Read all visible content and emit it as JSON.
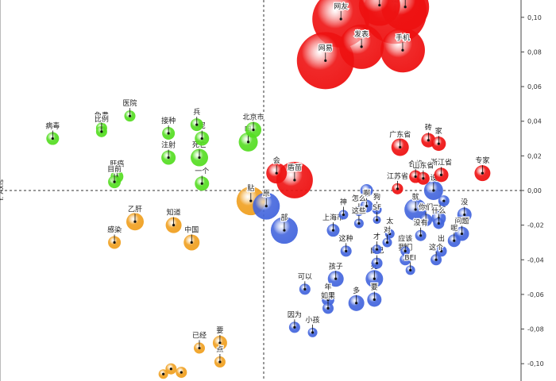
{
  "chart_data": {
    "type": "scatter",
    "ylabel": "Y. Axis",
    "xlim": [
      -1.0,
      1.0
    ],
    "ylim": [
      -0.11,
      0.11
    ],
    "y_ticks": [
      0.1,
      0.08,
      0.06,
      0.04,
      0.02,
      0.0,
      -0.02,
      -0.04,
      -0.06,
      -0.08,
      -0.1
    ],
    "y_tick_labels": [
      "0,10",
      "0,08",
      "0,06",
      "0,04",
      "0,02",
      "0,00",
      "-0,02",
      "-0,04",
      "-0,06",
      "-0,08",
      "-0,10"
    ],
    "grid": false,
    "colors": {
      "red": "#ee1111",
      "green": "#55dd22",
      "orange": "#f0a020",
      "blue": "#4466dd"
    },
    "series": [
      {
        "color": "red",
        "points": [
          {
            "label": "网友",
            "x": 0.3,
            "y": 0.099,
            "size": 36
          },
          {
            "label": "图表",
            "x": 0.45,
            "y": 0.107,
            "size": 26
          },
          {
            "label": "联盟",
            "x": 0.55,
            "y": 0.106,
            "size": 30
          },
          {
            "label": "图",
            "x": 0.51,
            "y": 0.103,
            "size": 40
          },
          {
            "label": "发表",
            "x": 0.38,
            "y": 0.083,
            "size": 28
          },
          {
            "label": "手机",
            "x": 0.54,
            "y": 0.081,
            "size": 28
          },
          {
            "label": "网易",
            "x": 0.24,
            "y": 0.075,
            "size": 36
          },
          {
            "label": "广东省",
            "x": 0.53,
            "y": 0.025,
            "size": 11
          },
          {
            "label": "砖",
            "x": 0.64,
            "y": 0.029,
            "size": 9
          },
          {
            "label": "家",
            "x": 0.68,
            "y": 0.027,
            "size": 9
          },
          {
            "label": "合格",
            "x": 0.59,
            "y": 0.008,
            "size": 8
          },
          {
            "label": "山东省",
            "x": 0.62,
            "y": 0.007,
            "size": 8
          },
          {
            "label": "浙江省",
            "x": 0.69,
            "y": 0.009,
            "size": 9
          },
          {
            "label": "专家",
            "x": 0.85,
            "y": 0.01,
            "size": 10
          },
          {
            "label": "江苏省",
            "x": 0.52,
            "y": 0.001,
            "size": 7
          },
          {
            "label": "会",
            "x": 0.05,
            "y": 0.01,
            "size": 13
          },
          {
            "label": "盾苗",
            "x": 0.12,
            "y": 0.006,
            "size": 23
          }
        ]
      },
      {
        "color": "green",
        "points": [
          {
            "label": "病毒",
            "x": -0.82,
            "y": 0.03,
            "size": 8
          },
          {
            "label": "免费",
            "x": -0.63,
            "y": 0.036,
            "size": 7
          },
          {
            "label": "比例",
            "x": -0.63,
            "y": 0.034,
            "size": 7
          },
          {
            "label": "医院",
            "x": -0.52,
            "y": 0.043,
            "size": 7
          },
          {
            "label": "接种",
            "x": -0.37,
            "y": 0.033,
            "size": 8
          },
          {
            "label": "兵",
            "x": -0.26,
            "y": 0.038,
            "size": 8
          },
          {
            "label": "呢",
            "x": -0.24,
            "y": 0.03,
            "size": 9
          },
          {
            "label": "注射",
            "x": -0.37,
            "y": 0.019,
            "size": 9
          },
          {
            "label": "死亡",
            "x": -0.25,
            "y": 0.019,
            "size": 11
          },
          {
            "label": "北京市",
            "x": -0.04,
            "y": 0.035,
            "size": 10
          },
          {
            "label": "吗",
            "x": -0.06,
            "y": 0.028,
            "size": 12
          },
          {
            "label": "肝癌",
            "x": -0.57,
            "y": 0.008,
            "size": 8
          },
          {
            "label": "目前",
            "x": -0.58,
            "y": 0.005,
            "size": 8
          },
          {
            "label": "一个",
            "x": -0.24,
            "y": 0.004,
            "size": 9
          }
        ]
      },
      {
        "color": "orange",
        "points": [
          {
            "label": "乙肝",
            "x": -0.5,
            "y": -0.018,
            "size": 11
          },
          {
            "label": "知道",
            "x": -0.35,
            "y": -0.02,
            "size": 10
          },
          {
            "label": "感染",
            "x": -0.58,
            "y": -0.03,
            "size": 8
          },
          {
            "label": "中国",
            "x": -0.28,
            "y": -0.03,
            "size": 10
          },
          {
            "label": "贴",
            "x": -0.05,
            "y": -0.006,
            "size": 18
          },
          {
            "label": "已经",
            "x": -0.25,
            "y": -0.091,
            "size": 7
          },
          {
            "label": "要",
            "x": -0.17,
            "y": -0.088,
            "size": 9
          },
          {
            "label": "点",
            "x": -0.17,
            "y": -0.099,
            "size": 7
          },
          {
            "label": "",
            "x": -0.36,
            "y": -0.103,
            "size": 7
          },
          {
            "label": "",
            "x": -0.32,
            "y": -0.105,
            "size": 7
          },
          {
            "label": "",
            "x": -0.39,
            "y": -0.106,
            "size": 6
          }
        ]
      },
      {
        "color": "blue",
        "points": [
          {
            "label": "原",
            "x": 0.01,
            "y": -0.009,
            "size": 17
          },
          {
            "label": "部",
            "x": 0.08,
            "y": -0.023,
            "size": 17
          },
          {
            "label": "",
            "x": 0.4,
            "y": 0.0,
            "size": 8
          },
          {
            "label": "啊",
            "x": 0.4,
            "y": -0.009,
            "size": 8
          },
          {
            "label": "设",
            "x": 0.66,
            "y": 0.0,
            "size": 12
          },
          {
            "label": "",
            "x": 0.7,
            "y": -0.006,
            "size": 7
          },
          {
            "label": "就",
            "x": 0.59,
            "y": -0.011,
            "size": 14
          },
          {
            "label": "一样",
            "x": 0.68,
            "y": -0.016,
            "size": 9
          },
          {
            "label": "没",
            "x": 0.78,
            "y": -0.014,
            "size": 9
          },
          {
            "label": "怎么",
            "x": 0.37,
            "y": -0.012,
            "size": 6
          },
          {
            "label": "神",
            "x": 0.31,
            "y": -0.014,
            "size": 6
          },
          {
            "label": "狗",
            "x": 0.44,
            "y": -0.011,
            "size": 6
          },
          {
            "label": "SF",
            "x": 0.44,
            "y": -0.017,
            "size": 5
          },
          {
            "label": "这些",
            "x": 0.37,
            "y": -0.019,
            "size": 6
          },
          {
            "label": "你们",
            "x": 0.63,
            "y": -0.017,
            "size": 8
          },
          {
            "label": "什么",
            "x": 0.68,
            "y": -0.019,
            "size": 7
          },
          {
            "label": "上海市",
            "x": 0.27,
            "y": -0.023,
            "size": 8
          },
          {
            "label": "太",
            "x": 0.49,
            "y": -0.025,
            "size": 6
          },
          {
            "label": "没有",
            "x": 0.61,
            "y": -0.026,
            "size": 7
          },
          {
            "label": "问题",
            "x": 0.77,
            "y": -0.025,
            "size": 9
          },
          {
            "label": "呢",
            "x": 0.74,
            "y": -0.029,
            "size": 8
          },
          {
            "label": "对",
            "x": 0.48,
            "y": -0.03,
            "size": 6
          },
          {
            "label": "这种",
            "x": 0.32,
            "y": -0.035,
            "size": 7
          },
          {
            "label": "才",
            "x": 0.44,
            "y": -0.034,
            "size": 6
          },
          {
            "label": "应该",
            "x": 0.55,
            "y": -0.035,
            "size": 6
          },
          {
            "label": "出",
            "x": 0.69,
            "y": -0.035,
            "size": 7
          },
          {
            "label": "我们",
            "x": 0.55,
            "y": -0.04,
            "size": 7
          },
          {
            "label": "这个",
            "x": 0.67,
            "y": -0.04,
            "size": 7
          },
          {
            "label": "自己",
            "x": 0.44,
            "y": -0.042,
            "size": 7
          },
          {
            "label": "BEI",
            "x": 0.57,
            "y": -0.046,
            "size": 6
          },
          {
            "label": "孩子",
            "x": 0.28,
            "y": -0.051,
            "size": 10
          },
          {
            "label": "死",
            "x": 0.43,
            "y": -0.051,
            "size": 11
          },
          {
            "label": "可以",
            "x": 0.16,
            "y": -0.057,
            "size": 7
          },
          {
            "label": "年",
            "x": 0.25,
            "y": -0.063,
            "size": 8
          },
          {
            "label": "要",
            "x": 0.43,
            "y": -0.063,
            "size": 9
          },
          {
            "label": "多",
            "x": 0.36,
            "y": -0.065,
            "size": 10
          },
          {
            "label": "如果",
            "x": 0.25,
            "y": -0.068,
            "size": 7
          },
          {
            "label": "因为",
            "x": 0.12,
            "y": -0.079,
            "size": 7
          },
          {
            "label": "小孩",
            "x": 0.19,
            "y": -0.082,
            "size": 6
          }
        ]
      }
    ]
  }
}
